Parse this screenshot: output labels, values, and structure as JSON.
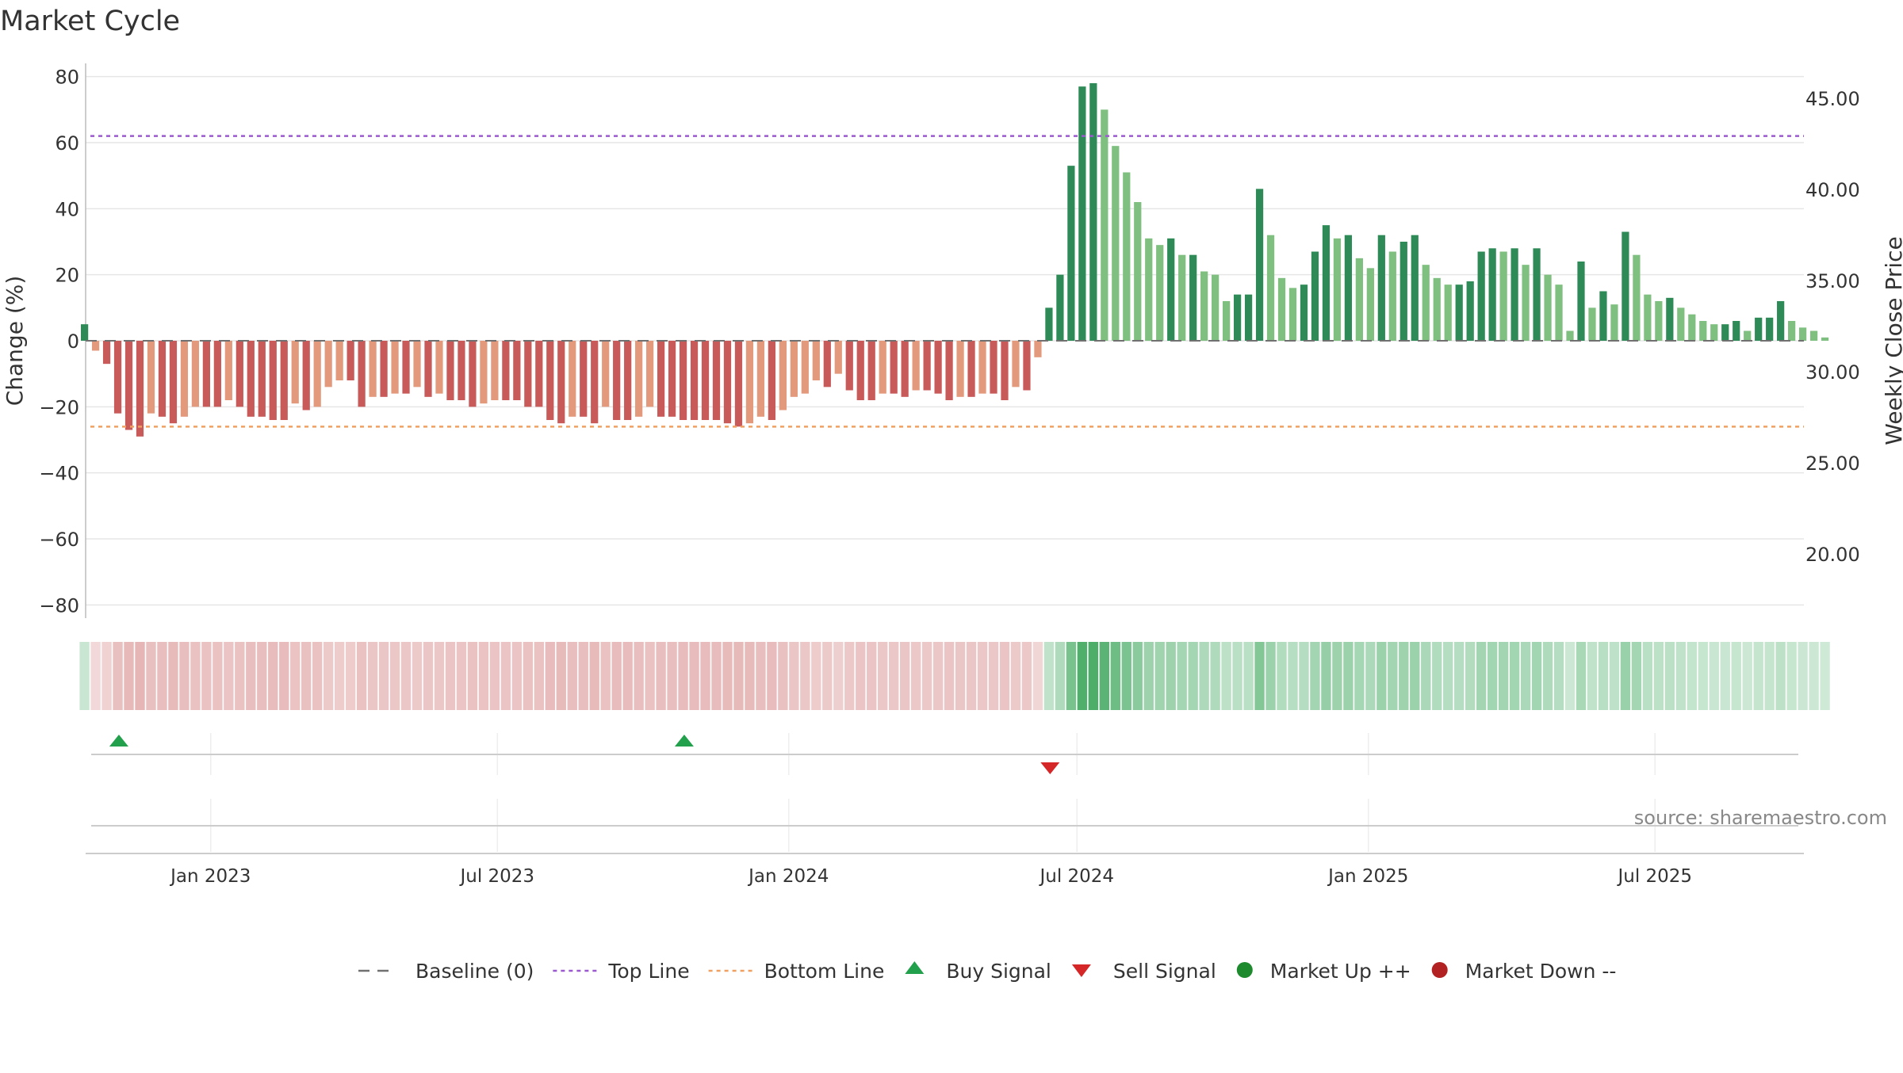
{
  "chart_data": {
    "type": "bar",
    "title": "Market Cycle",
    "ylabel": "Change (%)",
    "ylabel_right": "Weekly Close Price",
    "ylim": [
      -84,
      84
    ],
    "y_ticks": [
      80,
      60,
      40,
      20,
      0,
      -20,
      -40,
      -60,
      -80
    ],
    "y_tick_labels": [
      "80",
      "60",
      "40",
      "20",
      "0",
      "−20",
      "−40",
      "−60",
      "−80"
    ],
    "y2_ticks": [
      45,
      40,
      35,
      30,
      25,
      20
    ],
    "y2_tick_labels": [
      "45.00",
      "40.00",
      "35.00",
      "30.00",
      "25.00",
      "20.00"
    ],
    "x_ticks": [
      {
        "date": "2023-01-01",
        "label": "Jan 2023"
      },
      {
        "date": "2023-07-01",
        "label": "Jul 2023"
      },
      {
        "date": "2024-01-01",
        "label": "Jan 2024"
      },
      {
        "date": "2024-07-01",
        "label": "Jul 2024"
      },
      {
        "date": "2025-01-01",
        "label": "Jan 2025"
      },
      {
        "date": "2025-07-01",
        "label": "Jul 2025"
      }
    ],
    "x_range": [
      "2022-10-14",
      "2025-10-03"
    ],
    "first_bar_date": "2022-10-14",
    "bar_interval_days": 7,
    "values": [
      5,
      -3,
      -7,
      -22,
      -27,
      -29,
      -22,
      -23,
      -25,
      -23,
      -20,
      -20,
      -20,
      -18,
      -20,
      -23,
      -23,
      -24,
      -24,
      -19,
      -21,
      -20,
      -14,
      -12,
      -12,
      -20,
      -17,
      -17,
      -16,
      -16,
      -14,
      -17,
      -16,
      -18,
      -18,
      -20,
      -19,
      -18,
      -18,
      -18,
      -20,
      -20,
      -24,
      -25,
      -23,
      -23,
      -25,
      -20,
      -24,
      -24,
      -23,
      -20,
      -23,
      -23,
      -24,
      -24,
      -24,
      -24,
      -25,
      -26,
      -25,
      -23,
      -24,
      -21,
      -17,
      -16,
      -12,
      -14,
      -10,
      -15,
      -18,
      -18,
      -16,
      -16,
      -17,
      -15,
      -15,
      -16,
      -18,
      -17,
      -17,
      -16,
      -16,
      -18,
      -14,
      -15,
      -5,
      10,
      20,
      53,
      77,
      78,
      70,
      59,
      51,
      42,
      31,
      29,
      31,
      26,
      26,
      21,
      20,
      12,
      14,
      14,
      46,
      32,
      19,
      16,
      17,
      27,
      35,
      31,
      32,
      25,
      22,
      32,
      27,
      30,
      32,
      23,
      19,
      17,
      17,
      18,
      27,
      28,
      27,
      28,
      23,
      28,
      20,
      17,
      3,
      24,
      10,
      15,
      11,
      33,
      26,
      14,
      12,
      13,
      10,
      8,
      6,
      5,
      5,
      6,
      3,
      7,
      7,
      12,
      6,
      4,
      3,
      1
    ],
    "threshold_lines": [
      {
        "name": "Top Line",
        "value": 62,
        "color": "#9b59d0",
        "style": "dotted"
      },
      {
        "name": "Bottom Line",
        "value": -26,
        "color": "#f0a060",
        "style": "dotted"
      }
    ],
    "signals": [
      {
        "type": "buy",
        "date": "2022-11-04"
      },
      {
        "type": "buy",
        "date": "2023-10-27"
      },
      {
        "type": "sell",
        "date": "2024-06-14"
      }
    ],
    "colors": {
      "pos_strong": "#2e8b57",
      "pos_weak": "#7fbf7f",
      "neg_strong": "#c85a5a",
      "neg_weak": "#e39a7c",
      "buy": "#22a04b",
      "sell": "#d62728",
      "market_up": "#1e8a2e",
      "market_down": "#b22222",
      "baseline": "#707070"
    },
    "source_text": "source: sharemaestro.com",
    "legend": [
      {
        "label": "Baseline (0)",
        "symbol": "dash",
        "color": "#707070"
      },
      {
        "label": "Top Line",
        "symbol": "dotted",
        "color": "#9b59d0"
      },
      {
        "label": "Bottom Line",
        "symbol": "dotted",
        "color": "#f0a060"
      },
      {
        "label": "Buy Signal",
        "symbol": "triangle-up",
        "color": "#22a04b"
      },
      {
        "label": "Sell Signal",
        "symbol": "triangle-down",
        "color": "#d62728"
      },
      {
        "label": "Market Up ++",
        "symbol": "dot",
        "color": "#1e8a2e"
      },
      {
        "label": "Market Down --",
        "symbol": "dot",
        "color": "#b22222"
      }
    ]
  }
}
